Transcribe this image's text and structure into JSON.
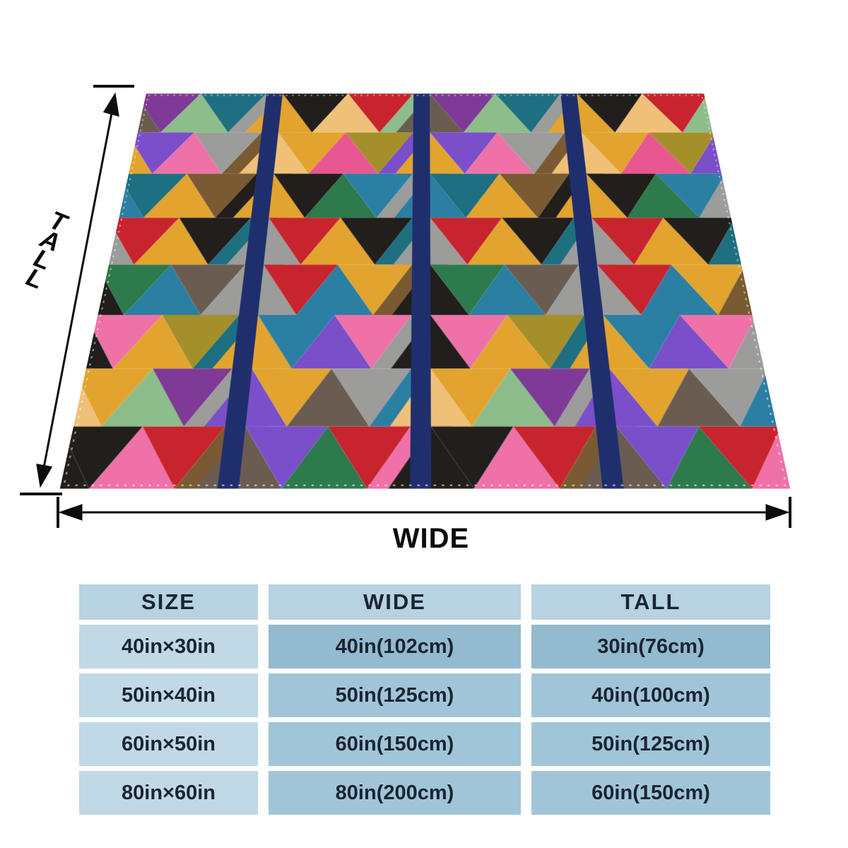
{
  "diagram": {
    "tall_label": "TALL",
    "wide_label": "WIDE",
    "arrow_color": "#0d0d0d"
  },
  "blanket": {
    "stripe_color": "#1f2f6e",
    "stitch_color": "rgba(255,255,255,0.55)",
    "palette": {
      "purple": "#7e3a96",
      "violet": "#7a4fc9",
      "teal": "#1e6f80",
      "steel": "#2b7fa3",
      "lightgreen": "#8cbd8b",
      "darkgreen": "#2d7a4c",
      "taupe": "#6b5c52",
      "gray": "#9c9c9a",
      "black": "#211e1c",
      "red": "#c7242e",
      "gold": "#e2a42e",
      "peach": "#f0c078",
      "pink": "#ee72a7",
      "hotpink": "#e8578f",
      "olive": "#a58f2a",
      "brown": "#7a5a32"
    },
    "section_order": [
      "A",
      "B",
      "A",
      "B"
    ],
    "rows": [
      {
        "A": [
          "taupe",
          "purple",
          "lightgreen",
          "teal",
          "gray"
        ],
        "B": [
          "gold",
          "black",
          "peach",
          "red",
          "lightgreen"
        ]
      },
      {
        "A": [
          "gold",
          "violet",
          "pink",
          "gray",
          "brown"
        ],
        "B": [
          "peach",
          "gold",
          "hotpink",
          "olive",
          "violet"
        ]
      },
      {
        "A": [
          "steel",
          "teal",
          "gold",
          "brown",
          "black"
        ],
        "B": [
          "gold",
          "black",
          "darkgreen",
          "steel",
          "gray"
        ]
      },
      {
        "A": [
          "gray",
          "red",
          "gold",
          "black",
          "teal"
        ],
        "B": [
          "gray",
          "red",
          "gold",
          "black",
          "teal"
        ]
      },
      {
        "A": [
          "black",
          "darkgreen",
          "steel",
          "taupe",
          "gray"
        ],
        "B": [
          "gray",
          "red",
          "steel",
          "gold",
          "brown"
        ]
      },
      {
        "A": [
          "black",
          "pink",
          "gold",
          "olive",
          "teal"
        ],
        "B": [
          "gold",
          "steel",
          "violet",
          "pink",
          "gray"
        ]
      },
      {
        "A": [
          "peach",
          "gold",
          "lightgreen",
          "purple",
          "gray"
        ],
        "B": [
          "violet",
          "gold",
          "taupe",
          "gray",
          "steel"
        ]
      },
      {
        "A": [
          "black",
          "black",
          "pink",
          "red",
          "brown"
        ],
        "B": [
          "taupe",
          "violet",
          "darkgreen",
          "red",
          "pink"
        ]
      }
    ]
  },
  "table": {
    "headers": [
      "SIZE",
      "WIDE",
      "TALL"
    ],
    "rows": [
      {
        "size": "40in×30in",
        "wide": "40in(102cm)",
        "tall": "30in(76cm)"
      },
      {
        "size": "50in×40in",
        "wide": "50in(125cm)",
        "tall": "40in(100cm)"
      },
      {
        "size": "60in×50in",
        "wide": "60in(150cm)",
        "tall": "50in(125cm)"
      },
      {
        "size": "80in×60in",
        "wide": "80in(200cm)",
        "tall": "60in(150cm)"
      }
    ],
    "colors": {
      "header_bg": "#b7d2e1",
      "size_col_bg": "#c1d8e6",
      "value_bg": "#a1c5d8",
      "value_first_row_bg": "#93bacf",
      "text": "#1b2433"
    }
  }
}
